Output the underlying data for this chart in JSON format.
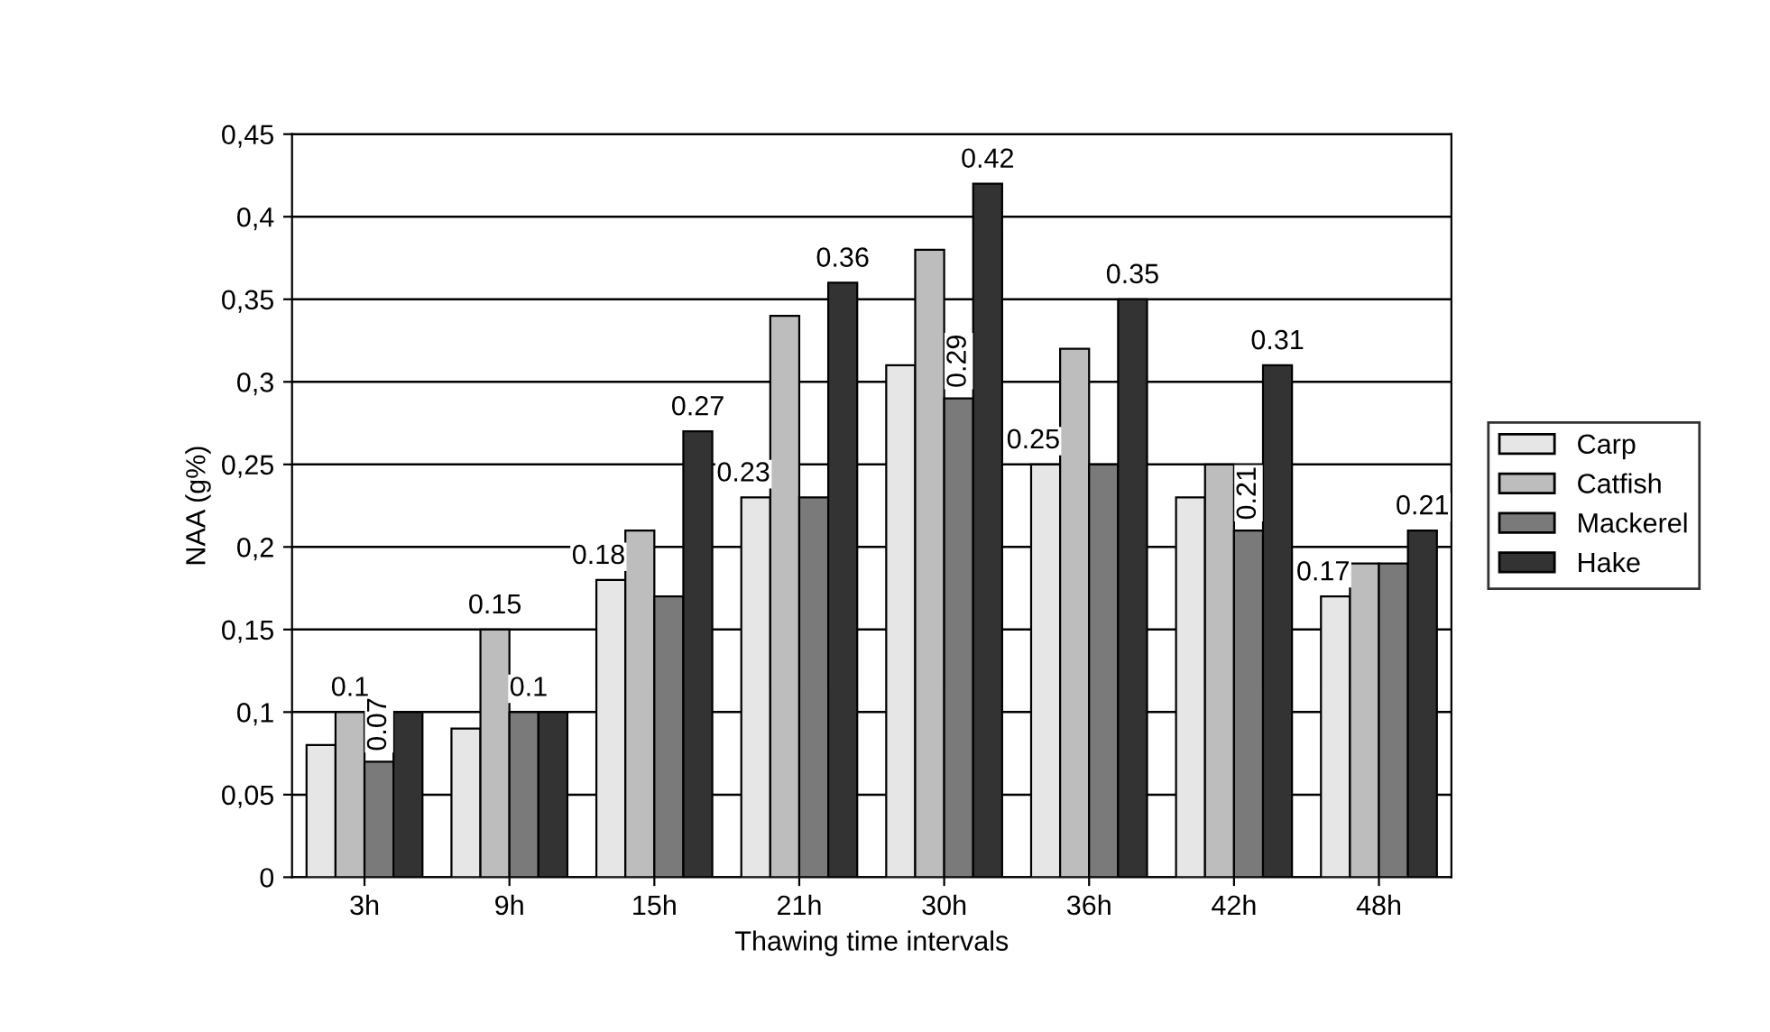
{
  "chart_data": {
    "type": "bar",
    "xlabel": "Thawing time intervals",
    "ylabel": "NAA (g%)",
    "categories": [
      "3h",
      "9h",
      "15h",
      "21h",
      "30h",
      "36h",
      "42h",
      "48h"
    ],
    "series": [
      {
        "name": "Carp",
        "color": "#e6e6e6",
        "values": [
          0.08,
          0.09,
          0.18,
          0.23,
          0.31,
          0.25,
          0.23,
          0.17
        ],
        "value_labels": [
          null,
          null,
          "0.18",
          "0.23",
          null,
          "0.25",
          null,
          "0.17"
        ]
      },
      {
        "name": "Catfish",
        "color": "#bdbdbd",
        "values": [
          0.1,
          0.15,
          0.21,
          0.34,
          0.38,
          0.32,
          0.25,
          0.19
        ],
        "value_labels": [
          "0.1",
          "0.15",
          null,
          null,
          null,
          null,
          null,
          null
        ]
      },
      {
        "name": "Mackerel",
        "color": "#7a7a7a",
        "values": [
          0.07,
          0.1,
          0.17,
          0.23,
          0.29,
          0.25,
          0.21,
          0.19
        ],
        "value_labels": [
          "0.07",
          "0.1",
          null,
          null,
          "0.29",
          null,
          "0.21",
          null
        ]
      },
      {
        "name": "Hake",
        "color": "#333333",
        "values": [
          0.1,
          0.1,
          0.27,
          0.36,
          0.42,
          0.35,
          0.31,
          0.21
        ],
        "value_labels": [
          null,
          null,
          "0.27",
          "0.36",
          "0.42",
          "0.35",
          "0.31",
          "0.21"
        ]
      }
    ],
    "ylim": [
      0,
      0.45
    ],
    "yticks": [
      {
        "value": 0,
        "label": "0"
      },
      {
        "value": 0.05,
        "label": "0,05"
      },
      {
        "value": 0.1,
        "label": "0,1"
      },
      {
        "value": 0.15,
        "label": "0,15"
      },
      {
        "value": 0.2,
        "label": "0,2"
      },
      {
        "value": 0.25,
        "label": "0,25"
      },
      {
        "value": 0.3,
        "label": "0,3"
      },
      {
        "value": 0.35,
        "label": "0,35"
      },
      {
        "value": 0.4,
        "label": "0,4"
      },
      {
        "value": 0.45,
        "label": "0,45"
      }
    ],
    "grid": "y",
    "legend": "right"
  }
}
